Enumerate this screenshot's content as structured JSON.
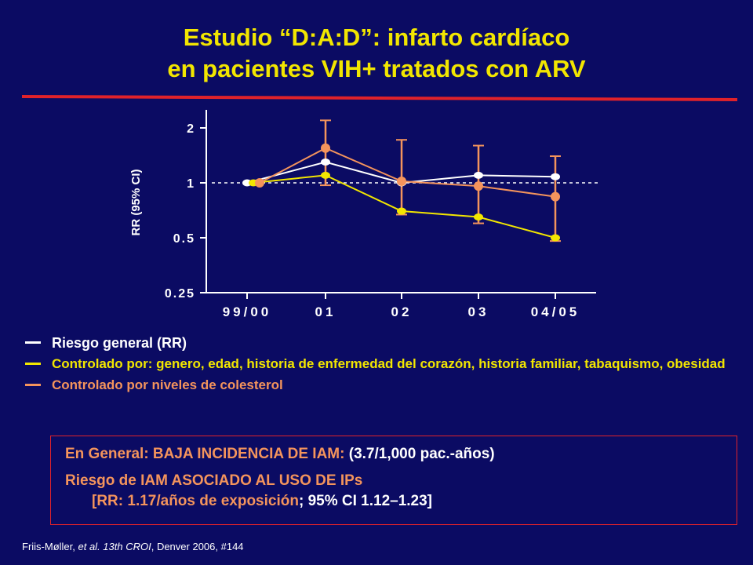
{
  "title": {
    "line1": "Estudio “D:A:D”: infarto cardíaco",
    "line2": "en pacientes  VIH+ tratados con ARV"
  },
  "colors": {
    "background": "#0b0b63",
    "title": "#f2e600",
    "accent_red": "#e0222a",
    "series_white": "#ffffff",
    "series_yellow": "#f2e600",
    "series_orange": "#f4945c",
    "box_text_orange": "#f4945c"
  },
  "chart_data": {
    "type": "line",
    "ylabel": "RR (95% CI)",
    "yscale": "log",
    "ylim": [
      0.25,
      2.5
    ],
    "yticks": [
      {
        "value": 2,
        "label": "2"
      },
      {
        "value": 1,
        "label": "1"
      },
      {
        "value": 0.5,
        "label": "0.5"
      },
      {
        "value": 0.25,
        "label": "0.25"
      }
    ],
    "categories": [
      "99/00",
      "01",
      "02",
      "03",
      "04/05"
    ],
    "reference_line": 1,
    "series": [
      {
        "name": "Riesgo general (RR)",
        "color": "#ffffff",
        "values": [
          1.0,
          1.3,
          1.0,
          1.1,
          1.08
        ]
      },
      {
        "name": "Controlado por: genero, edad, historia de enfermedad del corazón, historia familiar, tabaquismo, obesidad",
        "color": "#f2e600",
        "values": [
          1.0,
          1.1,
          0.7,
          0.65,
          0.5
        ]
      },
      {
        "name": "Controlado por niveles de colesterol",
        "color": "#f4945c",
        "values": [
          1.0,
          1.55,
          1.02,
          0.96,
          0.84
        ],
        "ci_low": [
          null,
          0.97,
          0.67,
          0.6,
          0.48
        ],
        "ci_high": [
          null,
          2.2,
          1.72,
          1.6,
          1.4
        ]
      }
    ]
  },
  "legend": [
    {
      "text": "Riesgo general (RR)",
      "color": "#ffffff"
    },
    {
      "text": "Controlado por: genero, edad, historia de enfermedad del corazón, historia familiar, tabaquismo, obesidad",
      "color": "#f2e600"
    },
    {
      "text": "Controlado por niveles de colesterol",
      "color": "#f4945c"
    }
  ],
  "box": {
    "l1_orange": "En General: BAJA INCIDENCIA DE IAM: ",
    "l1_white": "(3.7/1,000 pac.-años)",
    "l2_orange": "Riesgo de IAM ASOCIADO AL USO DE IPs",
    "l3_orange": "[RR: 1.17/años de exposición",
    "l3_white": "; 95% CI 1.12–1.23]"
  },
  "footnote": {
    "authors": "Friis-Møller, ",
    "etal": "et al. 13th CROI",
    "rest": ", Denver 2006, #144"
  }
}
